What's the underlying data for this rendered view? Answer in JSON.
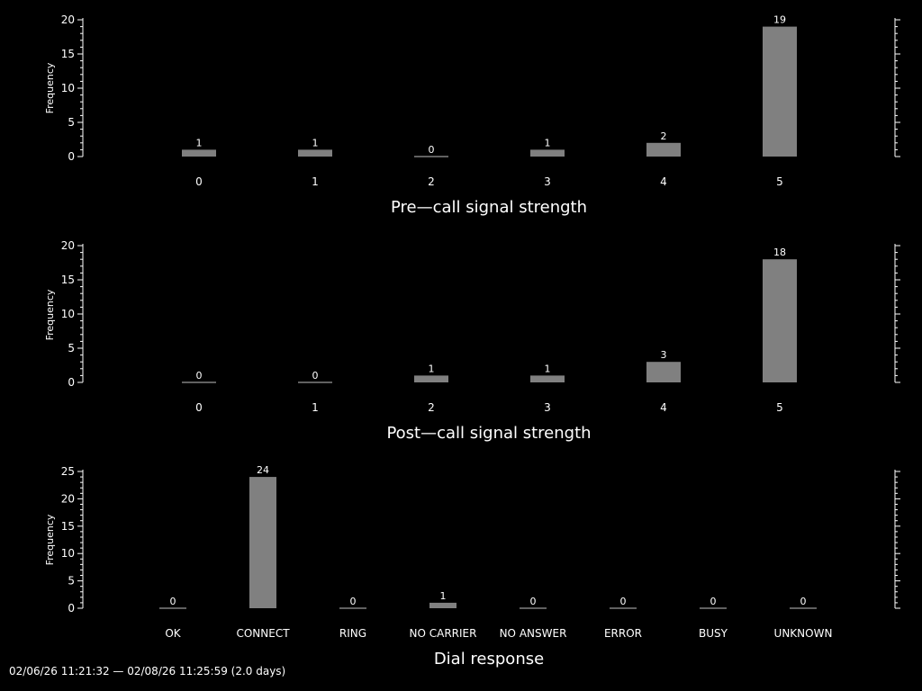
{
  "colors": {
    "background": "#000000",
    "axis": "#ffffff",
    "text": "#ffffff",
    "bar": "#808080"
  },
  "footer": {
    "text": "02/06/26 11:21:32 — 02/08/26 11:25:59 (2.0 days)"
  },
  "chart_data": [
    {
      "type": "bar",
      "xlabel": "Pre—call signal strength",
      "ylabel": "Frequency",
      "categories": [
        "0",
        "1",
        "2",
        "3",
        "4",
        "5"
      ],
      "values": [
        1,
        1,
        0,
        1,
        2,
        19
      ],
      "yticks": [
        0,
        5,
        10,
        15,
        20
      ],
      "ylim": [
        0,
        20
      ],
      "data_labels": true
    },
    {
      "type": "bar",
      "xlabel": "Post—call signal strength",
      "ylabel": "Frequency",
      "categories": [
        "0",
        "1",
        "2",
        "3",
        "4",
        "5"
      ],
      "values": [
        0,
        0,
        1,
        1,
        3,
        18
      ],
      "yticks": [
        0,
        5,
        10,
        15,
        20
      ],
      "ylim": [
        0,
        20
      ],
      "data_labels": true
    },
    {
      "type": "bar",
      "xlabel": "Dial response",
      "ylabel": "Frequency",
      "categories": [
        "OK",
        "CONNECT",
        "RING",
        "NO CARRIER",
        "NO ANSWER",
        "ERROR",
        "BUSY",
        "UNKNOWN"
      ],
      "values": [
        0,
        24,
        0,
        1,
        0,
        0,
        0,
        0
      ],
      "yticks": [
        0,
        5,
        10,
        15,
        20,
        25
      ],
      "ylim": [
        0,
        25
      ],
      "data_labels": true
    }
  ]
}
